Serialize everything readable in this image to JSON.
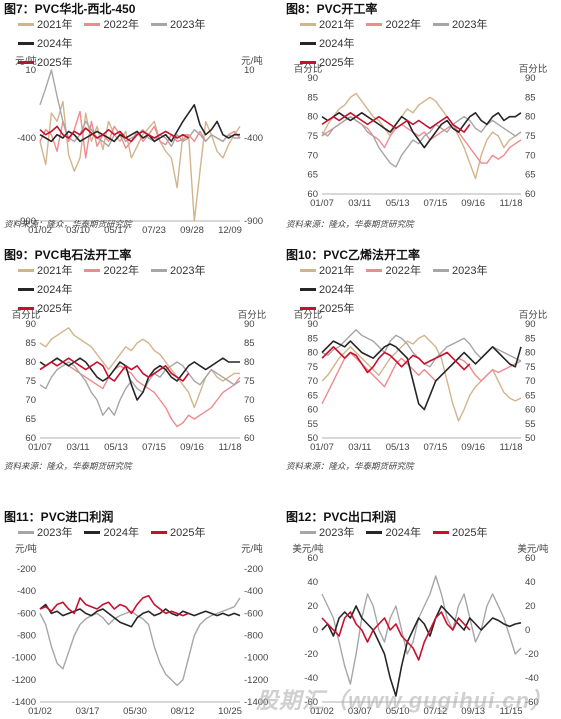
{
  "source_text": "资料来源：隆众，华泰期货研究院",
  "watermark": "股期汇（www.gugihui.cn）",
  "series_colors": {
    "2021年": "#d2b48c",
    "2022年": "#f08a8f",
    "2023年": "#a6a6a6",
    "2024年": "#262626",
    "2025年": "#c8102e"
  },
  "chart_data": [
    {
      "type": "line",
      "title": "图7：PVC华北-西北-450",
      "ylabel_left": "元/吨",
      "ylabel_right": "元/吨",
      "ylim": [
        -900,
        10
      ],
      "yticks": [
        -900,
        -400,
        10
      ],
      "x_tick_labels": [
        "01/02",
        "03/10",
        "05/17",
        "07/23",
        "09/28",
        "12/09"
      ],
      "series": [
        {
          "name": "2021年",
          "values": [
            -420,
            -560,
            -250,
            -300,
            -180,
            -500,
            -600,
            -520,
            -250,
            -420,
            -330,
            -470,
            -300,
            -380,
            -420,
            -360,
            -520,
            -450,
            -380,
            -340,
            -300,
            -420,
            -480,
            -520,
            -700,
            -380,
            -380,
            -900,
            -600,
            -300,
            -380,
            -480,
            -520,
            -440,
            -380,
            -330
          ]
        },
        {
          "name": "2022年",
          "values": [
            -420,
            -350,
            -380,
            -480,
            -300,
            -420,
            -350,
            -240,
            -520,
            -300,
            -450,
            -380,
            -420,
            -330,
            -380,
            -460,
            -420,
            -360,
            -420,
            -380,
            -330,
            -420,
            -440,
            -380,
            -420,
            -410,
            -380,
            -420,
            -360,
            -420,
            -380,
            -400,
            -420,
            -380,
            -360,
            -400
          ]
        },
        {
          "name": "2023年",
          "values": [
            -200,
            -100,
            10,
            -150,
            -300,
            -400,
            -420,
            -380,
            -300,
            -350,
            -400,
            -420,
            -450,
            -380,
            -360,
            -420,
            -400,
            -380,
            -350,
            -400,
            -420,
            -380,
            -400,
            -450,
            -380,
            -420,
            -400,
            -350,
            -380,
            -420,
            -380,
            -400,
            -420,
            -380,
            -400,
            -400
          ]
        },
        {
          "name": "2024年",
          "values": [
            -380,
            -400,
            -420,
            -380,
            -400,
            -360,
            -380,
            -420,
            -400,
            -380,
            -360,
            -380,
            -400,
            -420,
            -380,
            -400,
            -380,
            -360,
            -400,
            -380,
            -420,
            -400,
            -380,
            -420,
            -360,
            -300,
            -250,
            -200,
            -320,
            -380,
            -350,
            -300,
            -380,
            -400,
            -380,
            -380
          ]
        },
        {
          "name": "2025年",
          "values": [
            -350,
            -380,
            -360,
            -330,
            -380,
            -400,
            -360,
            -380,
            -340,
            -370,
            -400,
            -380,
            -350,
            -380,
            -360,
            -400,
            -420,
            -380,
            -360,
            -380,
            -400,
            -380,
            -360,
            -380,
            -400,
            -380,
            -400
          ]
        }
      ]
    },
    {
      "type": "line",
      "title": "图8：PVC开工率",
      "ylabel_left": "百分比",
      "ylabel_right": "百分比",
      "ylim": [
        60,
        90
      ],
      "yticks": [
        60,
        65,
        70,
        75,
        80,
        85,
        90
      ],
      "x_tick_labels": [
        "01/07",
        "03/11",
        "05/13",
        "07/15",
        "09/16",
        "11/18"
      ],
      "series": [
        {
          "name": "2021年",
          "values": [
            75,
            78,
            80,
            82,
            83,
            85,
            86,
            84,
            82,
            80,
            79,
            77,
            75,
            78,
            80,
            82,
            81,
            83,
            84,
            85,
            84,
            82,
            80,
            78,
            75,
            72,
            68,
            64,
            70,
            74,
            76,
            75,
            72,
            74,
            75,
            76
          ]
        },
        {
          "name": "2022年",
          "values": [
            75,
            76,
            77,
            78,
            79,
            80,
            79,
            78,
            77,
            75,
            74,
            72,
            75,
            77,
            78,
            77,
            76,
            75,
            76,
            74,
            75,
            76,
            77,
            78,
            76,
            74,
            72,
            70,
            68,
            68,
            70,
            69,
            70,
            72,
            73,
            74
          ]
        },
        {
          "name": "2023年",
          "values": [
            76,
            75,
            77,
            78,
            79,
            80,
            79,
            78,
            76,
            75,
            72,
            70,
            68,
            67,
            70,
            72,
            74,
            73,
            75,
            76,
            78,
            77,
            76,
            78,
            79,
            80,
            79,
            77,
            76,
            78,
            79,
            78,
            77,
            76,
            75,
            76
          ]
        },
        {
          "name": "2024年",
          "values": [
            80,
            79,
            80,
            81,
            80,
            79,
            80,
            81,
            80,
            79,
            78,
            77,
            76,
            78,
            80,
            79,
            76,
            74,
            72,
            74,
            76,
            78,
            79,
            77,
            76,
            78,
            80,
            81,
            79,
            78,
            80,
            81,
            79,
            80,
            80,
            81
          ]
        },
        {
          "name": "2025年",
          "values": [
            78,
            79,
            80,
            79,
            80,
            81,
            80,
            79,
            78,
            79,
            80,
            79,
            78,
            77,
            78,
            79,
            78,
            79,
            78,
            77,
            78,
            79,
            80,
            78,
            77,
            76,
            78
          ]
        }
      ]
    },
    {
      "type": "line",
      "title": "图9：PVC电石法开工率",
      "ylabel_left": "百分比",
      "ylabel_right": "百分比",
      "ylim": [
        60,
        90
      ],
      "yticks": [
        60,
        65,
        70,
        75,
        80,
        85,
        90
      ],
      "x_tick_labels": [
        "01/07",
        "03/11",
        "05/13",
        "07/15",
        "09/16",
        "11/18"
      ],
      "series": [
        {
          "name": "2021年",
          "values": [
            85,
            84,
            86,
            87,
            88,
            89,
            87,
            86,
            85,
            84,
            82,
            80,
            78,
            80,
            82,
            84,
            83,
            85,
            86,
            85,
            83,
            82,
            80,
            78,
            76,
            74,
            72,
            68,
            72,
            76,
            78,
            76,
            75,
            76,
            77,
            77
          ]
        },
        {
          "name": "2022年",
          "values": [
            78,
            79,
            80,
            81,
            80,
            79,
            78,
            77,
            76,
            75,
            74,
            73,
            76,
            78,
            79,
            78,
            77,
            75,
            74,
            73,
            72,
            70,
            68,
            65,
            63,
            64,
            66,
            65,
            66,
            67,
            68,
            70,
            72,
            73,
            74,
            76
          ]
        },
        {
          "name": "2023年",
          "values": [
            74,
            73,
            76,
            78,
            79,
            80,
            79,
            77,
            75,
            72,
            70,
            66,
            68,
            66,
            70,
            73,
            75,
            73,
            72,
            75,
            77,
            76,
            78,
            79,
            80,
            79,
            77,
            75,
            74,
            76,
            78,
            77,
            76,
            75,
            74,
            75
          ]
        },
        {
          "name": "2024年",
          "values": [
            80,
            79,
            80,
            81,
            80,
            79,
            80,
            81,
            80,
            78,
            76,
            75,
            76,
            78,
            80,
            79,
            74,
            70,
            72,
            76,
            78,
            79,
            78,
            76,
            75,
            77,
            79,
            80,
            79,
            78,
            79,
            80,
            81,
            80,
            80,
            80
          ]
        },
        {
          "name": "2025年",
          "values": [
            78,
            79,
            80,
            79,
            80,
            81,
            80,
            79,
            78,
            79,
            80,
            79,
            76,
            75,
            77,
            79,
            78,
            79,
            77,
            76,
            77,
            78,
            79,
            77,
            76,
            75,
            77
          ]
        }
      ]
    },
    {
      "type": "line",
      "title": "图10：PVC乙烯法开工率",
      "ylabel_left": "百分比",
      "ylabel_right": "百分比",
      "ylim": [
        50,
        90
      ],
      "yticks": [
        50,
        55,
        60,
        65,
        70,
        75,
        80,
        85,
        90
      ],
      "x_tick_labels": [
        "01/07",
        "03/11",
        "05/13",
        "07/15",
        "09/16",
        "11/18"
      ],
      "series": [
        {
          "name": "2021年",
          "values": [
            70,
            72,
            75,
            78,
            80,
            82,
            80,
            78,
            76,
            74,
            72,
            75,
            78,
            80,
            82,
            84,
            83,
            85,
            86,
            84,
            82,
            78,
            70,
            62,
            56,
            60,
            65,
            68,
            70,
            72,
            74,
            70,
            66,
            64,
            63,
            64
          ]
        },
        {
          "name": "2022年",
          "values": [
            62,
            66,
            70,
            74,
            78,
            80,
            78,
            76,
            74,
            72,
            70,
            68,
            72,
            76,
            78,
            76,
            74,
            72,
            74,
            72,
            70,
            72,
            74,
            76,
            78,
            77,
            75,
            72,
            70,
            72,
            74,
            73,
            74,
            75,
            76,
            77
          ]
        },
        {
          "name": "2023年",
          "values": [
            80,
            79,
            81,
            82,
            84,
            86,
            88,
            86,
            85,
            84,
            82,
            80,
            84,
            86,
            85,
            83,
            80,
            78,
            76,
            75,
            78,
            80,
            82,
            83,
            84,
            85,
            83,
            80,
            78,
            80,
            82,
            81,
            80,
            79,
            78,
            77
          ]
        },
        {
          "name": "2024年",
          "values": [
            80,
            82,
            84,
            83,
            82,
            84,
            82,
            80,
            79,
            78,
            80,
            82,
            83,
            82,
            80,
            78,
            70,
            62,
            60,
            65,
            70,
            72,
            74,
            76,
            78,
            80,
            78,
            76,
            78,
            80,
            82,
            80,
            78,
            76,
            75,
            82
          ]
        },
        {
          "name": "2025年",
          "values": [
            78,
            80,
            82,
            80,
            78,
            80,
            79,
            76,
            73,
            75,
            78,
            80,
            79,
            77,
            75,
            77,
            79,
            78,
            76,
            77,
            78,
            79,
            80,
            78,
            76,
            74,
            76
          ]
        }
      ]
    },
    {
      "type": "line",
      "title": "图11：PVC进口利润",
      "ylabel_left": "元/吨",
      "ylabel_right": "元/吨",
      "ylim": [
        -1400,
        -100
      ],
      "yticks": [
        -1400,
        -1200,
        -1000,
        -800,
        -600,
        -400,
        -200
      ],
      "x_tick_labels": [
        "01/02",
        "03/17",
        "05/30",
        "08/12",
        "10/25"
      ],
      "series": [
        {
          "name": "2023年",
          "values": [
            -600,
            -700,
            -900,
            -1050,
            -1100,
            -950,
            -800,
            -700,
            -650,
            -620,
            -600,
            -640,
            -700,
            -650,
            -620,
            -600,
            -580,
            -620,
            -650,
            -700,
            -900,
            -1050,
            -1150,
            -1200,
            -1250,
            -1200,
            -1000,
            -800,
            -700,
            -650,
            -620,
            -600,
            -580,
            -560,
            -540,
            -460
          ]
        },
        {
          "name": "2024年",
          "values": [
            -560,
            -520,
            -600,
            -580,
            -620,
            -600,
            -580,
            -560,
            -600,
            -620,
            -580,
            -560,
            -600,
            -640,
            -680,
            -700,
            -720,
            -640,
            -600,
            -580,
            -620,
            -600,
            -560,
            -600,
            -620,
            -580,
            -600,
            -620,
            -600,
            -580,
            -600,
            -620,
            -600,
            -620,
            -600,
            -620
          ]
        },
        {
          "name": "2025年",
          "values": [
            -560,
            -540,
            -580,
            -520,
            -500,
            -560,
            -600,
            -460,
            -520,
            -540,
            -560,
            -520,
            -500,
            -560,
            -520,
            -540,
            -600,
            -520,
            -460,
            -440,
            -520,
            -560,
            -600,
            -580,
            -600,
            -620,
            -600
          ]
        }
      ]
    },
    {
      "type": "line",
      "title": "图12：PVC出口利润",
      "ylabel_left": "美元/吨",
      "ylabel_right": "美元/吨",
      "ylim": [
        -60,
        60
      ],
      "yticks": [
        -60,
        -40,
        -20,
        0,
        20,
        40,
        60
      ],
      "x_tick_labels": [
        "01/02",
        "03/07",
        "05/10",
        "07/12",
        "09/13",
        "11/15"
      ],
      "series": [
        {
          "name": "2023年",
          "values": [
            30,
            20,
            10,
            -10,
            -30,
            -45,
            -20,
            10,
            30,
            20,
            0,
            -10,
            10,
            20,
            0,
            -20,
            -10,
            10,
            20,
            30,
            45,
            30,
            10,
            0,
            20,
            30,
            10,
            -10,
            0,
            20,
            30,
            20,
            10,
            -5,
            -20,
            -15
          ]
        },
        {
          "name": "2024年",
          "values": [
            0,
            5,
            -5,
            10,
            15,
            10,
            20,
            10,
            5,
            0,
            -10,
            -20,
            -40,
            -55,
            -30,
            -10,
            0,
            10,
            5,
            -5,
            10,
            20,
            15,
            10,
            5,
            0,
            10,
            5,
            0,
            5,
            10,
            8,
            5,
            3,
            5,
            6
          ]
        },
        {
          "name": "2025年",
          "values": [
            10,
            5,
            0,
            -5,
            10,
            15,
            5,
            0,
            -10,
            0,
            5,
            10,
            0,
            5,
            -5,
            -10,
            -15,
            -25,
            -10,
            0,
            10,
            15,
            5,
            0,
            10,
            5,
            0
          ]
        }
      ]
    }
  ]
}
